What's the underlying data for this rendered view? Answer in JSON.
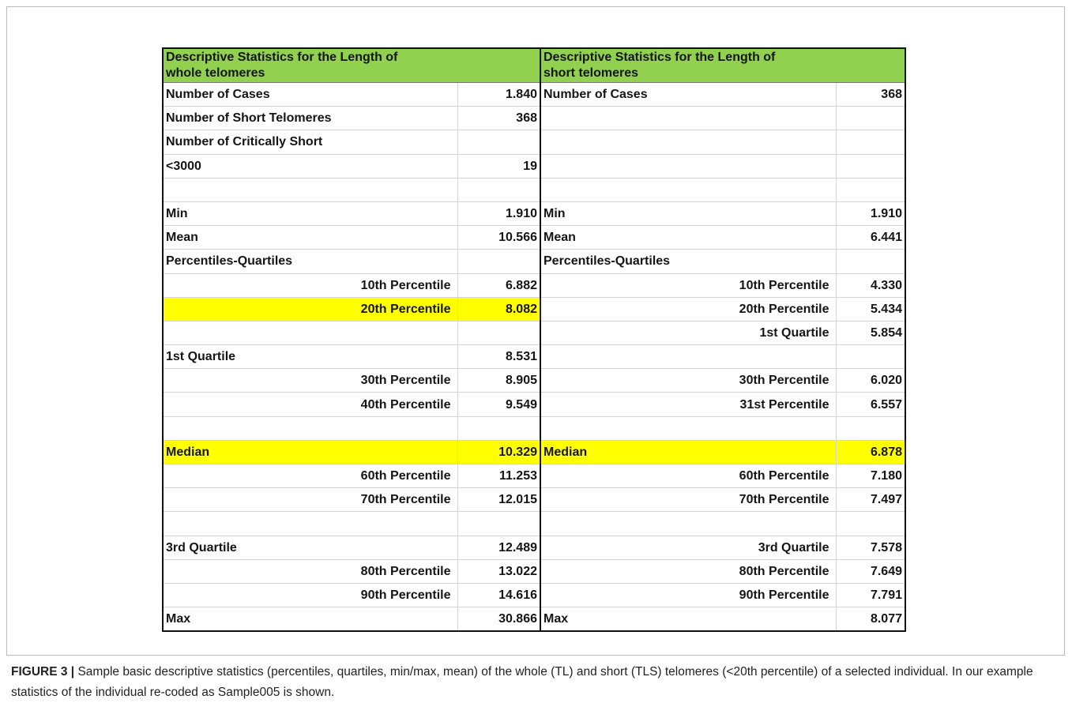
{
  "table": {
    "header": [
      [
        "Descriptive Statistics for the Length of",
        "whole telomeres"
      ],
      [
        "Descriptive Statistics for the Length of",
        "short telomeres"
      ]
    ],
    "rows": [
      [
        "Number of Cases",
        "1.840",
        "Number of Cases",
        "368"
      ],
      [
        "Number of Short Telomeres",
        "368",
        null,
        null
      ],
      [
        "Number of Critically Short",
        null,
        null,
        null
      ],
      [
        "<3000",
        "19",
        null,
        null
      ],
      [
        null,
        null,
        null,
        null
      ],
      [
        "Min",
        "1.910",
        "Min",
        "1.910"
      ],
      [
        "Mean",
        "10.566",
        "Mean",
        "6.441"
      ],
      [
        "Percentiles-Quartiles",
        null,
        "Percentiles-Quartiles",
        null
      ],
      [
        "10th Percentile",
        "6.882",
        "10th Percentile",
        "4.330"
      ],
      [
        "20th Percentile",
        "8.082",
        "20th Percentile",
        "5.434"
      ],
      [
        null,
        null,
        "1st Quartile",
        "5.854"
      ],
      [
        "1st Quartile",
        "8.531",
        null,
        null
      ],
      [
        "30th Percentile",
        "8.905",
        "30th Percentile",
        "6.020"
      ],
      [
        "40th Percentile",
        "9.549",
        "31st Percentile",
        "6.557"
      ],
      [
        null,
        null,
        null,
        null
      ],
      [
        "Median",
        "10.329",
        "Median",
        "6.878"
      ],
      [
        "60th Percentile",
        "11.253",
        "60th Percentile",
        "7.180"
      ],
      [
        "70th Percentile",
        "12.015",
        "70th Percentile",
        "7.497"
      ],
      [
        null,
        null,
        null,
        null
      ],
      [
        "3rd Quartile",
        "12.489",
        "3rd Quartile",
        "7.578"
      ],
      [
        "80th Percentile",
        "13.022",
        "80th Percentile",
        "7.649"
      ],
      [
        "90th Percentile",
        "14.616",
        "90th Percentile",
        "7.791"
      ],
      [
        "Max",
        "30.866",
        "Max",
        "8.077"
      ]
    ]
  },
  "caption": {
    "label": "FIGURE 3 |",
    "text": "Sample basic descriptive statistics (percentiles, quartiles, min/max, mean) of the whole (TL) and short (TLS) telomeres (<20th percentile) of a selected individual. In our example statistics of the individual re-coded as Sample005 is shown."
  }
}
